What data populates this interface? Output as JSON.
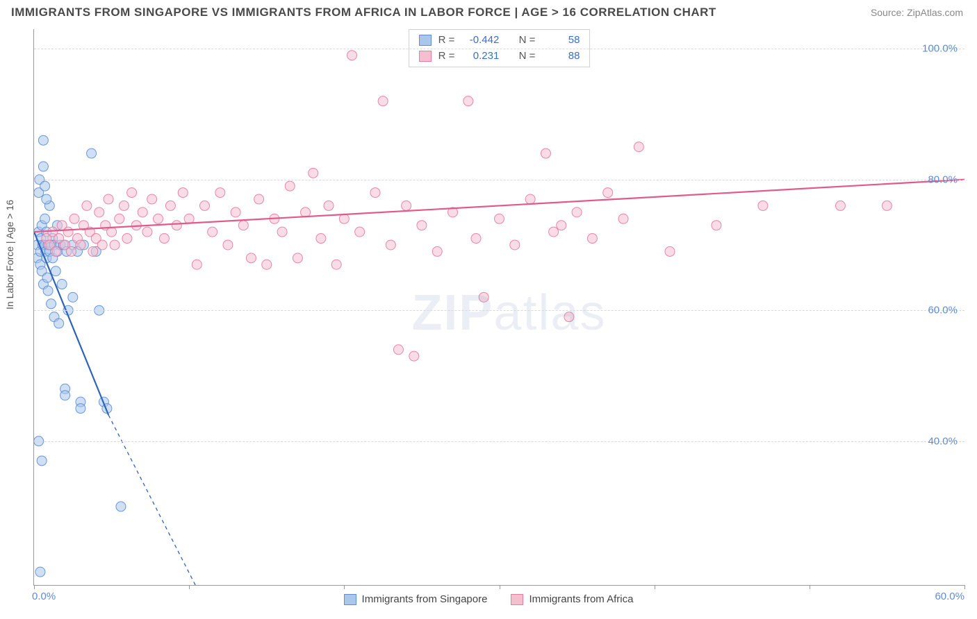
{
  "title": "IMMIGRANTS FROM SINGAPORE VS IMMIGRANTS FROM AFRICA IN LABOR FORCE | AGE > 16 CORRELATION CHART",
  "source": "Source: ZipAtlas.com",
  "watermark_a": "ZIP",
  "watermark_b": "atlas",
  "chart": {
    "type": "scatter-with-regression",
    "ylabel": "In Labor Force | Age > 16",
    "x_min": 0.0,
    "x_max": 60.0,
    "y_min": 18.0,
    "y_max": 103.0,
    "y_gridlines": [
      40.0,
      60.0,
      80.0,
      100.0
    ],
    "y_tick_format": "percent_1dp",
    "x_origin_label": "0.0%",
    "x_max_label": "60.0%",
    "x_tick_positions": [
      0,
      10,
      20,
      30,
      40,
      50,
      60
    ],
    "background_color": "#ffffff",
    "grid_color": "#d8d8d8",
    "axis_color": "#999999",
    "label_color": "#5b8dd6",
    "marker_radius": 7,
    "marker_opacity": 0.55,
    "marker_stroke_opacity": 0.9,
    "line_width_solid": 2.2,
    "line_width_dashed": 1.3
  },
  "legend_top": {
    "rows": [
      {
        "series": 0,
        "r_label": "R =",
        "r": "-0.442",
        "n_label": "N =",
        "n": "58"
      },
      {
        "series": 1,
        "r_label": "R =",
        "r": "0.231",
        "n_label": "N =",
        "n": "88"
      }
    ]
  },
  "legend_bottom": {
    "items": [
      {
        "series": 0,
        "label": "Immigrants from Singapore"
      },
      {
        "series": 1,
        "label": "Immigrants from Africa"
      }
    ]
  },
  "series": [
    {
      "name": "Immigrants from Singapore",
      "fill_color": "#aac7eb",
      "stroke_color": "#5b8dd6",
      "line_color": "#2e64b5",
      "regression": {
        "x1": 0.0,
        "y1": 72.0,
        "x2_solid": 4.8,
        "y2_solid": 44.0,
        "x2_dashed": 10.4,
        "y2_dashed": 18.0
      },
      "points": [
        [
          0.2,
          70
        ],
        [
          0.2,
          68
        ],
        [
          0.3,
          72
        ],
        [
          0.3,
          78
        ],
        [
          0.35,
          80
        ],
        [
          0.4,
          69
        ],
        [
          0.4,
          67
        ],
        [
          0.45,
          71
        ],
        [
          0.5,
          73
        ],
        [
          0.5,
          66
        ],
        [
          0.55,
          70
        ],
        [
          0.6,
          86
        ],
        [
          0.6,
          64
        ],
        [
          0.7,
          70
        ],
        [
          0.7,
          74
        ],
        [
          0.75,
          69
        ],
        [
          0.8,
          68
        ],
        [
          0.8,
          72
        ],
        [
          0.85,
          65
        ],
        [
          0.9,
          70
        ],
        [
          0.9,
          63
        ],
        [
          1.0,
          76
        ],
        [
          1.0,
          69
        ],
        [
          1.1,
          70
        ],
        [
          1.1,
          61
        ],
        [
          1.2,
          71
        ],
        [
          1.2,
          68
        ],
        [
          1.3,
          59
        ],
        [
          1.3,
          70
        ],
        [
          1.4,
          66
        ],
        [
          1.5,
          69
        ],
        [
          1.5,
          73
        ],
        [
          1.6,
          58
        ],
        [
          1.7,
          70
        ],
        [
          1.8,
          64
        ],
        [
          1.9,
          70
        ],
        [
          2.0,
          48
        ],
        [
          2.0,
          47
        ],
        [
          2.1,
          69
        ],
        [
          2.2,
          60
        ],
        [
          2.5,
          70
        ],
        [
          2.5,
          62
        ],
        [
          2.8,
          69
        ],
        [
          3.0,
          46
        ],
        [
          3.0,
          45
        ],
        [
          3.2,
          70
        ],
        [
          3.7,
          84
        ],
        [
          4.0,
          69
        ],
        [
          4.2,
          60
        ],
        [
          4.5,
          46
        ],
        [
          4.7,
          45
        ],
        [
          0.3,
          40
        ],
        [
          0.5,
          37
        ],
        [
          0.4,
          20
        ],
        [
          5.6,
          30
        ],
        [
          0.6,
          82
        ],
        [
          0.7,
          79
        ],
        [
          0.8,
          77
        ]
      ]
    },
    {
      "name": "Immigrants from Africa",
      "fill_color": "#f4c0cf",
      "stroke_color": "#e77aa0",
      "line_color": "#e05a8a",
      "regression": {
        "x1": 0.0,
        "y1": 72.0,
        "x2_solid": 60.0,
        "y2_solid": 80.0
      },
      "points": [
        [
          0.8,
          71
        ],
        [
          1.0,
          70
        ],
        [
          1.2,
          72
        ],
        [
          1.4,
          69
        ],
        [
          1.6,
          71
        ],
        [
          1.8,
          73
        ],
        [
          2.0,
          70
        ],
        [
          2.2,
          72
        ],
        [
          2.4,
          69
        ],
        [
          2.6,
          74
        ],
        [
          2.8,
          71
        ],
        [
          3.0,
          70
        ],
        [
          3.2,
          73
        ],
        [
          3.4,
          76
        ],
        [
          3.6,
          72
        ],
        [
          3.8,
          69
        ],
        [
          4.0,
          71
        ],
        [
          4.2,
          75
        ],
        [
          4.4,
          70
        ],
        [
          4.6,
          73
        ],
        [
          4.8,
          77
        ],
        [
          5.0,
          72
        ],
        [
          5.2,
          70
        ],
        [
          5.5,
          74
        ],
        [
          5.8,
          76
        ],
        [
          6.0,
          71
        ],
        [
          6.3,
          78
        ],
        [
          6.6,
          73
        ],
        [
          7.0,
          75
        ],
        [
          7.3,
          72
        ],
        [
          7.6,
          77
        ],
        [
          8.0,
          74
        ],
        [
          8.4,
          71
        ],
        [
          8.8,
          76
        ],
        [
          9.2,
          73
        ],
        [
          9.6,
          78
        ],
        [
          10.0,
          74
        ],
        [
          10.5,
          67
        ],
        [
          11.0,
          76
        ],
        [
          11.5,
          72
        ],
        [
          12.0,
          78
        ],
        [
          12.5,
          70
        ],
        [
          13.0,
          75
        ],
        [
          13.5,
          73
        ],
        [
          14.0,
          68
        ],
        [
          14.5,
          77
        ],
        [
          15.0,
          67
        ],
        [
          15.5,
          74
        ],
        [
          16.0,
          72
        ],
        [
          16.5,
          79
        ],
        [
          17.0,
          68
        ],
        [
          17.5,
          75
        ],
        [
          18.0,
          81
        ],
        [
          18.5,
          71
        ],
        [
          19.0,
          76
        ],
        [
          19.5,
          67
        ],
        [
          20.0,
          74
        ],
        [
          20.5,
          99
        ],
        [
          21.0,
          72
        ],
        [
          22.0,
          78
        ],
        [
          22.5,
          92
        ],
        [
          23.0,
          70
        ],
        [
          23.5,
          54
        ],
        [
          24.0,
          76
        ],
        [
          24.5,
          53
        ],
        [
          25.0,
          73
        ],
        [
          26.0,
          69
        ],
        [
          27.0,
          75
        ],
        [
          28.0,
          92
        ],
        [
          28.5,
          71
        ],
        [
          29.0,
          62
        ],
        [
          30.0,
          74
        ],
        [
          31.0,
          70
        ],
        [
          32.0,
          77
        ],
        [
          33.0,
          84
        ],
        [
          33.5,
          72
        ],
        [
          34.0,
          73
        ],
        [
          34.5,
          59
        ],
        [
          35.0,
          75
        ],
        [
          36.0,
          71
        ],
        [
          37.0,
          78
        ],
        [
          38.0,
          74
        ],
        [
          39.0,
          85
        ],
        [
          41.0,
          69
        ],
        [
          44.0,
          73
        ],
        [
          47.0,
          76
        ],
        [
          52.0,
          76
        ],
        [
          55.0,
          76
        ]
      ]
    }
  ]
}
